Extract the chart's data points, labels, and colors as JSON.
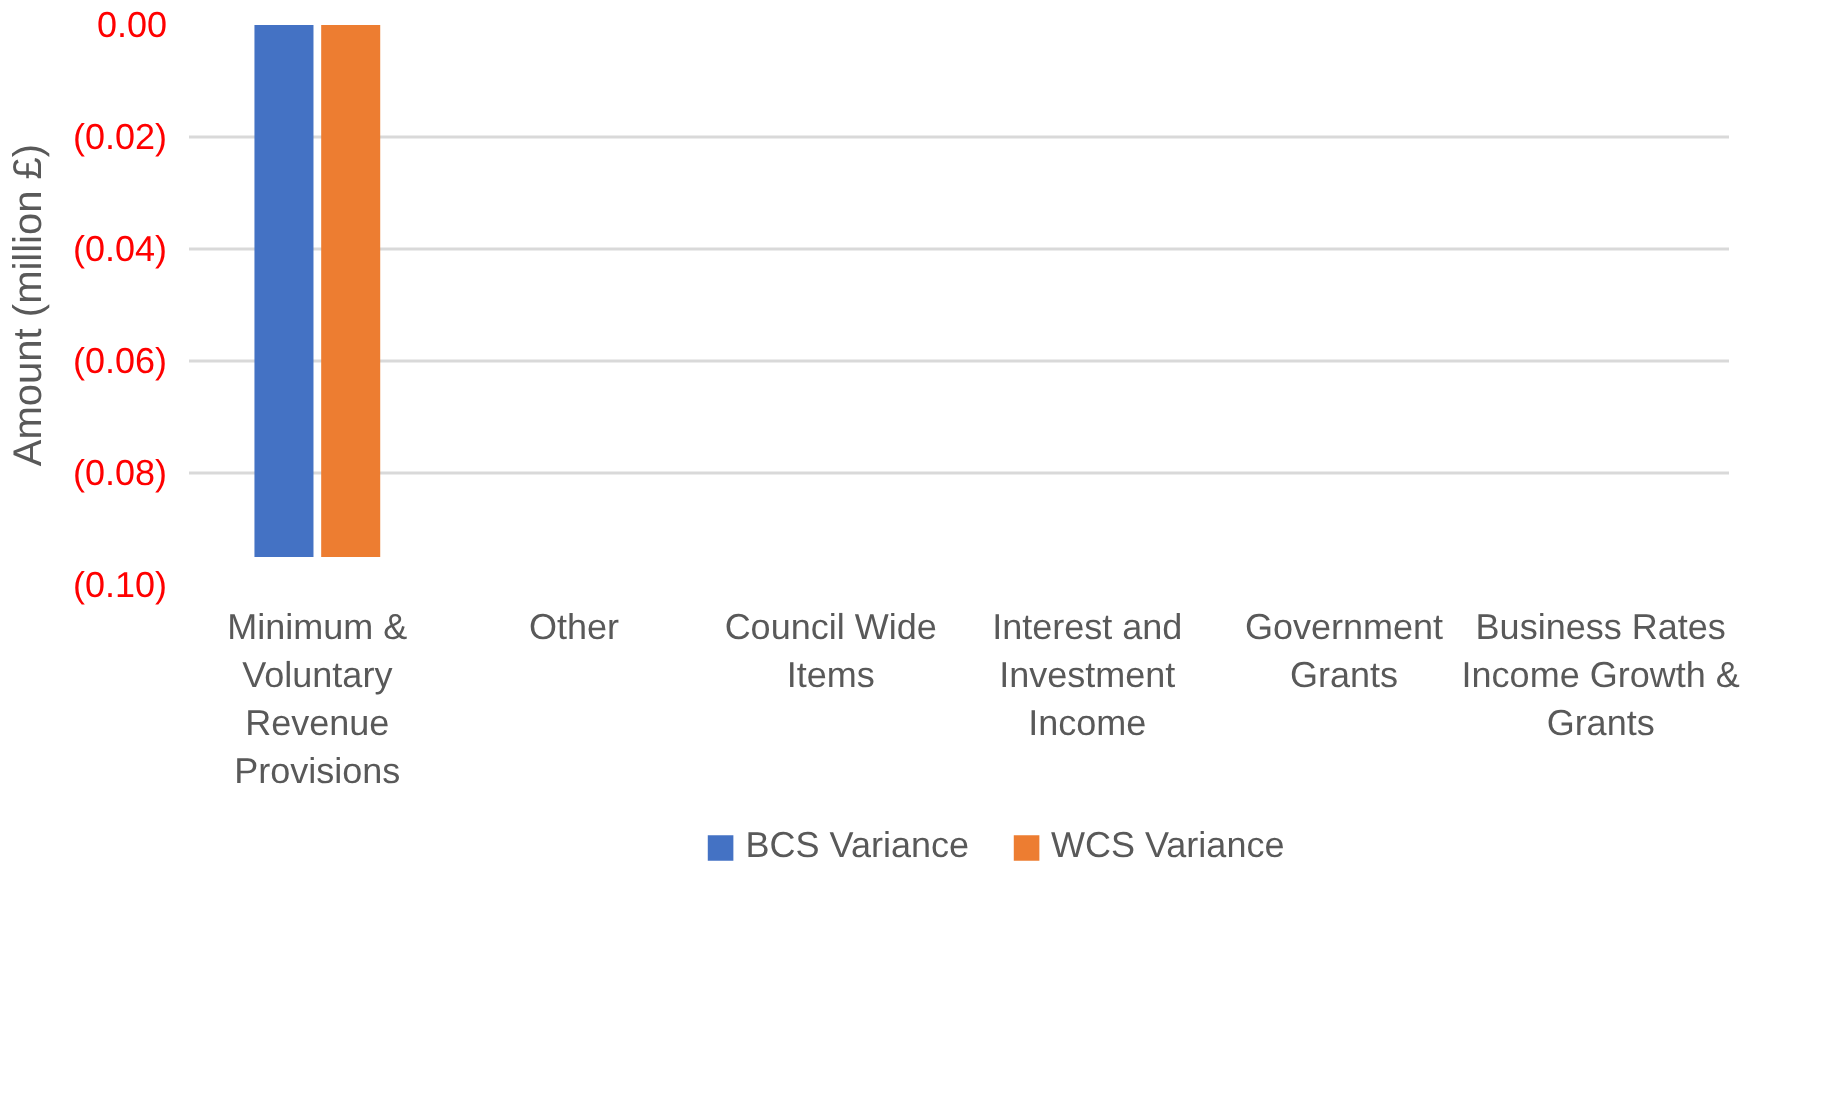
{
  "chart_data": {
    "type": "bar",
    "ylabel": "Amount (million £)",
    "categories": [
      "Minimum & Voluntary Revenue Provisions",
      "Other",
      "Council Wide Items",
      "Interest and Investment Income",
      "Government Grants",
      "Business Rates Income Growth & Grants"
    ],
    "series": [
      {
        "name": "BCS Variance",
        "color": "#4472c4",
        "values": [
          -0.095,
          0,
          0,
          0,
          0,
          0
        ]
      },
      {
        "name": "WCS Variance",
        "color": "#ed7d31",
        "values": [
          -0.095,
          0,
          0,
          0,
          0,
          0
        ]
      }
    ],
    "ylim": [
      -0.1,
      0
    ],
    "yticks": [
      {
        "value": 0,
        "label": "0.00"
      },
      {
        "value": -0.02,
        "label": "(0.02)"
      },
      {
        "value": -0.04,
        "label": "(0.04)"
      },
      {
        "value": -0.06,
        "label": "(0.06)"
      },
      {
        "value": -0.08,
        "label": "(0.08)"
      },
      {
        "value": -0.1,
        "label": "(0.10)"
      }
    ],
    "grid": "y",
    "legend": "bottom"
  }
}
